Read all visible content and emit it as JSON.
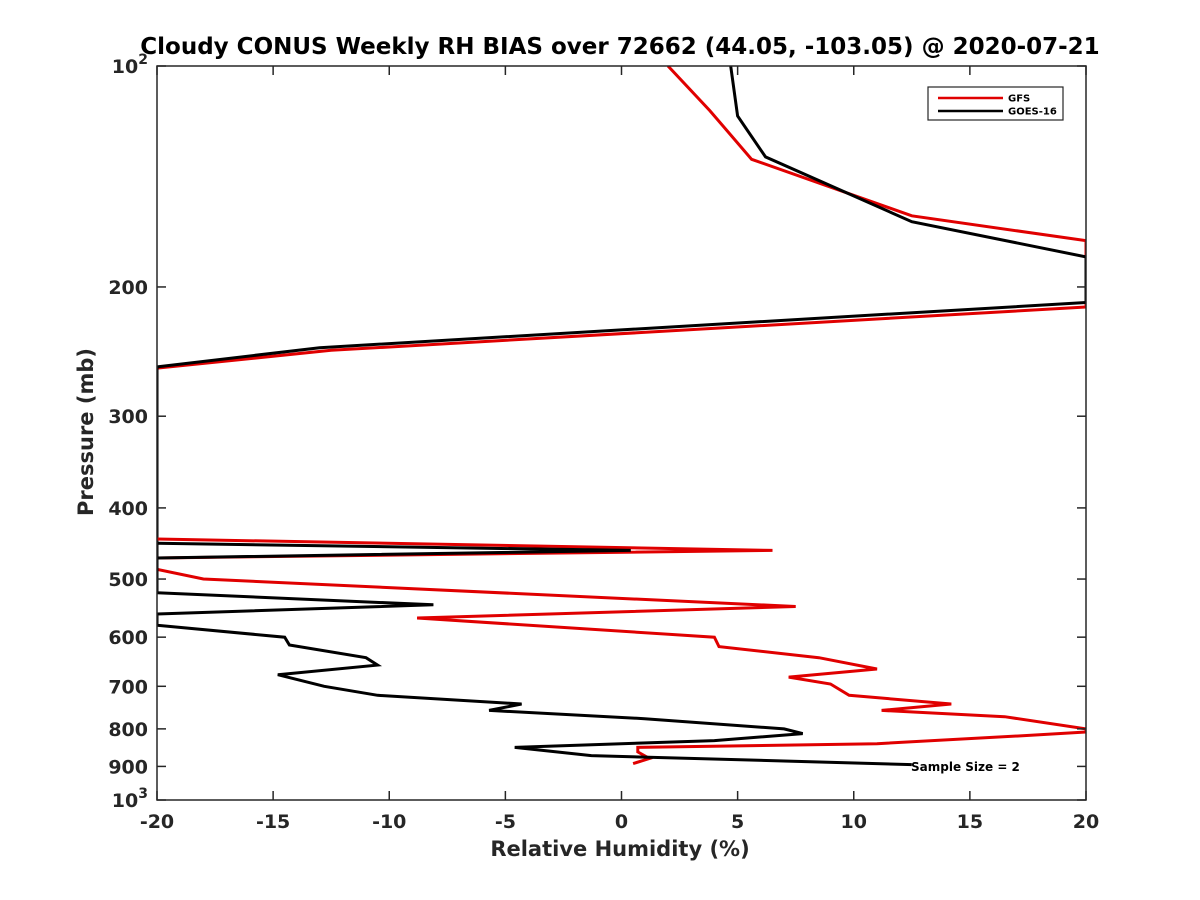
{
  "chart_data": {
    "type": "line",
    "title": "Cloudy CONUS Weekly RH BIAS over 72662 (44.05, -103.05) @ 2020-07-21",
    "xlabel": "Relative Humidity (%)",
    "ylabel": "Pressure (mb)",
    "xlim": [
      -20,
      20
    ],
    "ylim": [
      100,
      1000
    ],
    "y_scale": "log",
    "y_reversed": true,
    "x_ticks": [
      "-20",
      "-15",
      "-10",
      "-5",
      "0",
      "5",
      "10",
      "15",
      "20"
    ],
    "y_ticks": [
      {
        "value": 100,
        "base": "10",
        "exp": "2"
      },
      {
        "value": 200,
        "label": "200"
      },
      {
        "value": 300,
        "label": "300"
      },
      {
        "value": 400,
        "label": "400"
      },
      {
        "value": 500,
        "label": "500"
      },
      {
        "value": 600,
        "label": "600"
      },
      {
        "value": 700,
        "label": "700"
      },
      {
        "value": 800,
        "label": "800"
      },
      {
        "value": 900,
        "label": "900"
      },
      {
        "value": 1000,
        "base": "10",
        "exp": "3"
      }
    ],
    "grid": false,
    "legend_position": "top-right",
    "annotation": "Sample Size = 2",
    "series": [
      {
        "name": "GFS",
        "color": "#e00000",
        "points": [
          [
            2.0,
            100
          ],
          [
            3.8,
            115
          ],
          [
            5.6,
            134
          ],
          [
            12.5,
            160
          ],
          [
            20,
            173
          ],
          [
            20,
            213
          ],
          [
            -12.5,
            244
          ],
          [
            -20,
            258
          ],
          [
            -20,
            485
          ],
          [
            -18.0,
            500
          ],
          [
            7.5,
            545
          ],
          [
            -8.8,
            565
          ],
          [
            4.0,
            600
          ],
          [
            4.2,
            618
          ],
          [
            8.5,
            640
          ],
          [
            11.0,
            663
          ],
          [
            7.2,
            680
          ],
          [
            9.0,
            695
          ],
          [
            9.8,
            720
          ],
          [
            14.2,
            740
          ],
          [
            11.2,
            755
          ],
          [
            16.5,
            770
          ],
          [
            20,
            800
          ],
          [
            20,
            808
          ],
          [
            18.0,
            815
          ],
          [
            11.0,
            838
          ],
          [
            0.7,
            848
          ],
          [
            0.7,
            860
          ],
          [
            1.2,
            878
          ],
          [
            0.5,
            892
          ]
        ]
      },
      {
        "name": "GOES-16",
        "color": "#000000",
        "points": [
          [
            4.7,
            100
          ],
          [
            5.0,
            117
          ],
          [
            6.2,
            133
          ],
          [
            12.5,
            163
          ],
          [
            20,
            182
          ],
          [
            20,
            210
          ],
          [
            -13.0,
            242
          ],
          [
            -20,
            257
          ],
          [
            -20,
            522
          ],
          [
            -8.1,
            542
          ],
          [
            -20,
            558
          ],
          [
            -20,
            578
          ],
          [
            -14.5,
            600
          ],
          [
            -14.3,
            615
          ],
          [
            -11.0,
            640
          ],
          [
            -10.5,
            655
          ],
          [
            -14.8,
            675
          ],
          [
            -12.8,
            700
          ],
          [
            -10.5,
            720
          ],
          [
            -4.3,
            740
          ],
          [
            -5.7,
            755
          ],
          [
            1.0,
            775
          ],
          [
            7.0,
            800
          ],
          [
            7.8,
            812
          ],
          [
            4.0,
            830
          ],
          [
            -4.6,
            848
          ],
          [
            -1.3,
            870
          ],
          [
            12.5,
            895
          ]
        ]
      },
      {
        "name": "",
        "color": "#e00000",
        "points": [
          [
            -20,
            441
          ],
          [
            6.5,
            457
          ],
          [
            -20,
            468
          ]
        ]
      },
      {
        "name": "",
        "color": "#000000",
        "points": [
          [
            -20,
            447
          ],
          [
            0.4,
            457
          ],
          [
            -20,
            468
          ]
        ]
      }
    ]
  }
}
